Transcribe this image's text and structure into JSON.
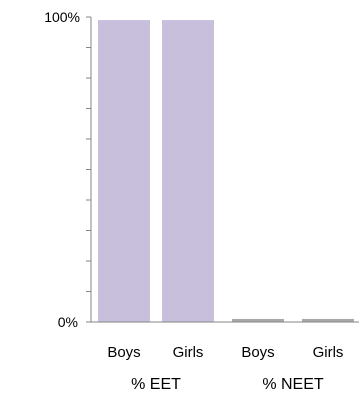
{
  "chart_data": {
    "type": "bar",
    "categories": [
      "Boys",
      "Girls",
      "Boys",
      "Girls"
    ],
    "groups": [
      {
        "label": "% EET",
        "categories": [
          "Boys",
          "Girls"
        ]
      },
      {
        "label": "% NEET",
        "categories": [
          "Boys",
          "Girls"
        ]
      }
    ],
    "values": [
      99,
      99,
      1,
      1
    ],
    "ylim": [
      0,
      100
    ],
    "y_ticks": [
      "0%",
      "100%"
    ],
    "grid": false,
    "colors": {
      "eet_bar": "#c7bfdc",
      "neet_bar": "#a9a9a9",
      "axis": "#868686"
    }
  }
}
